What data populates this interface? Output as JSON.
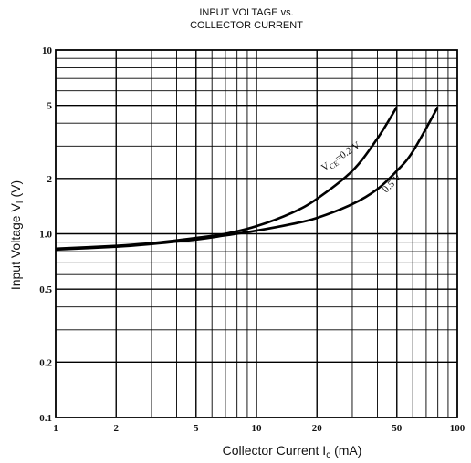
{
  "chart_data": {
    "type": "line",
    "title_line1": "INPUT VOLTAGE vs.",
    "title_line2": "COLLECTOR CURRENT",
    "xlabel": "Collector Current  I",
    "xlabel_sub": "c",
    "xlabel_unit": " (mA)",
    "ylabel": "Input Voltage  V",
    "ylabel_sub": "I",
    "ylabel_unit": " (V)",
    "x_scale": "log",
    "y_scale": "log",
    "xlim": [
      1,
      100
    ],
    "ylim": [
      0.1,
      10
    ],
    "grid": true,
    "x_ticks": [
      {
        "value": 1,
        "label": "1"
      },
      {
        "value": 2,
        "label": "2"
      },
      {
        "value": 5,
        "label": "5"
      },
      {
        "value": 10,
        "label": "10"
      },
      {
        "value": 20,
        "label": "20"
      },
      {
        "value": 50,
        "label": "50"
      },
      {
        "value": 100,
        "label": "100"
      }
    ],
    "y_ticks": [
      {
        "value": 0.1,
        "label": "0.1"
      },
      {
        "value": 0.2,
        "label": "0.2"
      },
      {
        "value": 0.5,
        "label": "0.5"
      },
      {
        "value": 1,
        "label": "1.0"
      },
      {
        "value": 2,
        "label": "2"
      },
      {
        "value": 5,
        "label": "5"
      },
      {
        "value": 10,
        "label": "10"
      }
    ],
    "series": [
      {
        "name": "V_CE=0.2 V",
        "label_main": "V",
        "label_sub": "CE",
        "label_rest": "=0.2 V",
        "x": [
          1,
          2,
          3,
          5,
          7,
          10,
          15,
          20,
          30,
          40,
          50
        ],
        "y": [
          0.83,
          0.86,
          0.89,
          0.95,
          1.0,
          1.1,
          1.3,
          1.55,
          2.2,
          3.3,
          4.9
        ]
      },
      {
        "name": "0.5 V",
        "label_main": "0.5 V",
        "label_sub": "",
        "label_rest": "",
        "x": [
          1,
          2,
          3,
          5,
          7,
          10,
          15,
          20,
          30,
          40,
          50,
          60,
          80
        ],
        "y": [
          0.82,
          0.85,
          0.88,
          0.93,
          0.98,
          1.04,
          1.13,
          1.22,
          1.45,
          1.75,
          2.2,
          2.8,
          4.9
        ]
      }
    ]
  }
}
